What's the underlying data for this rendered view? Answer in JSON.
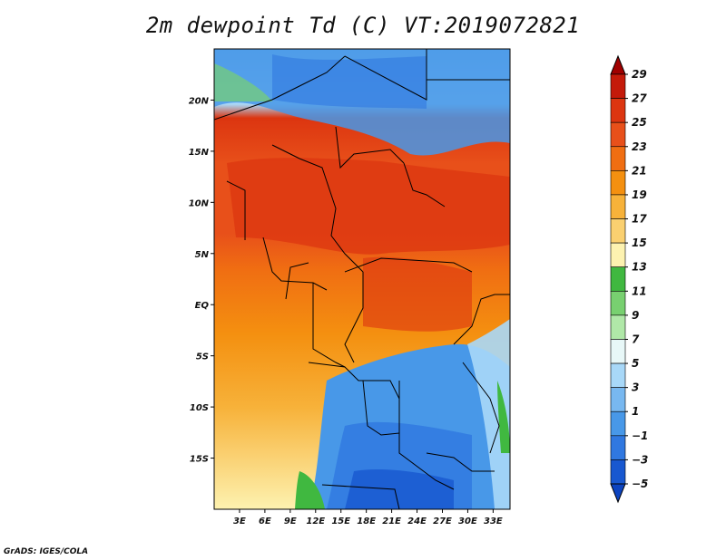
{
  "title": "2m dewpoint Td (C) VT:2019072821",
  "credit": "GrADS: IGES/COLA",
  "map": {
    "lon_labels": [
      "3E",
      "6E",
      "9E",
      "12E",
      "15E",
      "18E",
      "21E",
      "24E",
      "27E",
      "30E",
      "33E"
    ],
    "lat_labels": [
      "20N",
      "15N",
      "10N",
      "5N",
      "EQ",
      "5S",
      "10S",
      "15S"
    ],
    "lon_range": [
      0,
      35
    ],
    "lat_range": [
      -20,
      25
    ]
  },
  "colorbar": {
    "levels": [
      "29",
      "27",
      "25",
      "23",
      "21",
      "19",
      "17",
      "15",
      "13",
      "11",
      "9",
      "7",
      "5",
      "3",
      "1",
      "−1",
      "−3",
      "−5"
    ],
    "colors": [
      "#a00000",
      "#c41a0a",
      "#dc3510",
      "#e8501a",
      "#f06e12",
      "#f49010",
      "#f7b23a",
      "#fad070",
      "#fdf2b0",
      "#40b840",
      "#78d070",
      "#b0e8a8",
      "#e8f8f8",
      "#a8d8f8",
      "#78b8f0",
      "#4898e8",
      "#3078e0",
      "#1858d0",
      "#0c44c0"
    ]
  },
  "colors": {
    "border": "#000000",
    "land_warm": "#e8501a"
  }
}
